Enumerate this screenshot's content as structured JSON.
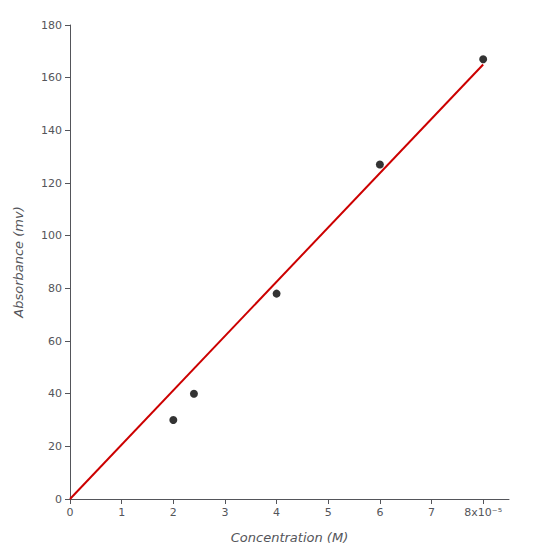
{
  "chart_data": {
    "type": "scatter",
    "xlabel": "Concentration (M)",
    "ylabel": "Absorbance (mv)",
    "series": [
      {
        "type": "line",
        "color": "#cc0000",
        "x": [
          0,
          8e-05
        ],
        "values": [
          0,
          165
        ]
      },
      {
        "type": "scatter",
        "color": "#000000",
        "x": [
          2e-05,
          2.4e-05,
          4e-05,
          6e-05,
          8e-05
        ],
        "values": [
          30,
          40,
          78,
          127,
          167
        ]
      }
    ],
    "xlim": [
      0,
      8.5e-05
    ],
    "ylim": [
      0,
      180
    ],
    "xticks": [
      0,
      {
        "value": 1e-05,
        "label": "1"
      },
      {
        "value": 2e-05,
        "label": "2"
      },
      {
        "value": 3e-05,
        "label": "3"
      },
      {
        "value": 4e-05,
        "label": "4"
      },
      {
        "value": 5e-05,
        "label": "5"
      },
      {
        "value": 6e-05,
        "label": "6"
      },
      {
        "value": 7e-05,
        "label": "7"
      },
      {
        "value": 8e-05,
        "label": "8x10⁻⁵"
      }
    ],
    "yticks": [
      0,
      20,
      40,
      60,
      80,
      100,
      120,
      140,
      160,
      180
    ],
    "grid": false
  }
}
